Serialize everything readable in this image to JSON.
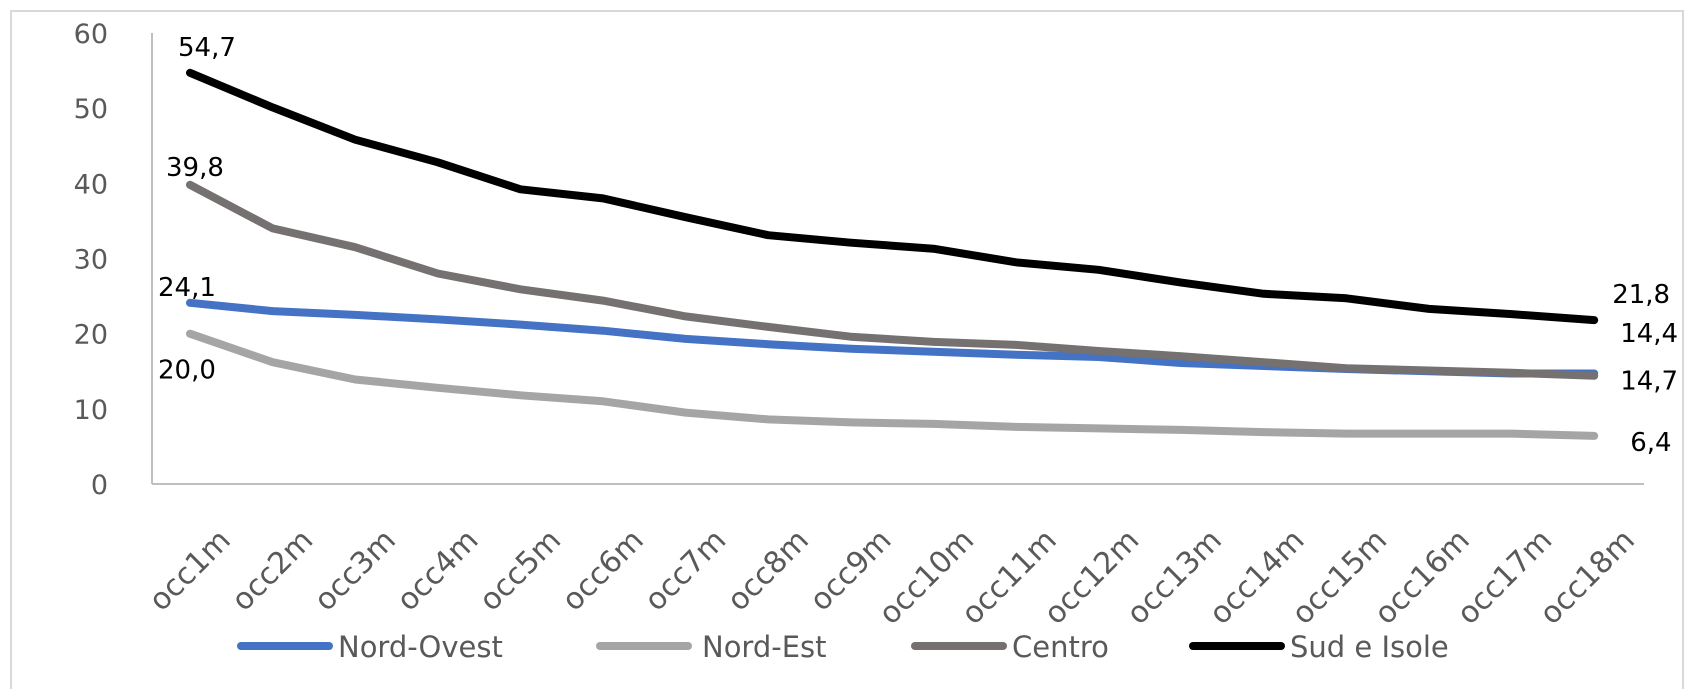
{
  "chart_data": {
    "type": "line",
    "title": "",
    "xlabel": "",
    "ylabel": "",
    "ylim": [
      0,
      60
    ],
    "yticks": [
      0,
      10,
      20,
      30,
      40,
      50,
      60
    ],
    "grid": false,
    "legend_position": "bottom",
    "categories": [
      "occ1m",
      "occ2m",
      "occ3m",
      "occ4m",
      "occ5m",
      "occ6m",
      "occ7m",
      "occ8m",
      "occ9m",
      "occ10m",
      "occ11m",
      "occ12m",
      "occ13m",
      "occ14m",
      "occ15m",
      "occ16m",
      "occ17m",
      "occ18m"
    ],
    "series": [
      {
        "name": "Nord-Ovest",
        "color": "#4472c4",
        "values": [
          24.1,
          23.0,
          22.5,
          21.9,
          21.2,
          20.4,
          19.3,
          18.6,
          18.0,
          17.6,
          17.2,
          16.9,
          16.1,
          15.7,
          15.3,
          15.0,
          14.7,
          14.7
        ],
        "labels": [
          {
            "index": 0,
            "text": "24,1"
          },
          {
            "index": 17,
            "text": "14,7"
          }
        ]
      },
      {
        "name": "Nord-Est",
        "color": "#a5a5a5",
        "values": [
          20.0,
          16.2,
          13.9,
          12.8,
          11.8,
          11.0,
          9.5,
          8.6,
          8.2,
          8.0,
          7.6,
          7.4,
          7.2,
          6.9,
          6.7,
          6.7,
          6.7,
          6.4
        ],
        "labels": [
          {
            "index": 0,
            "text": "20,0"
          },
          {
            "index": 17,
            "text": "6,4"
          }
        ]
      },
      {
        "name": "Centro",
        "color": "#767171",
        "values": [
          39.8,
          34.0,
          31.5,
          28.0,
          25.9,
          24.4,
          22.3,
          20.9,
          19.6,
          18.9,
          18.5,
          17.7,
          17.0,
          16.2,
          15.4,
          15.1,
          14.8,
          14.4
        ],
        "labels": [
          {
            "index": 0,
            "text": "39,8"
          },
          {
            "index": 17,
            "text": "14,4"
          }
        ]
      },
      {
        "name": "Sud e Isole",
        "color": "#000000",
        "values": [
          54.7,
          50.1,
          45.8,
          42.8,
          39.2,
          38.0,
          35.5,
          33.1,
          32.1,
          31.3,
          29.5,
          28.5,
          26.8,
          25.3,
          24.7,
          23.3,
          22.6,
          21.8
        ],
        "labels": [
          {
            "index": 0,
            "text": "54,7"
          },
          {
            "index": 17,
            "text": "21,8"
          }
        ]
      }
    ]
  }
}
